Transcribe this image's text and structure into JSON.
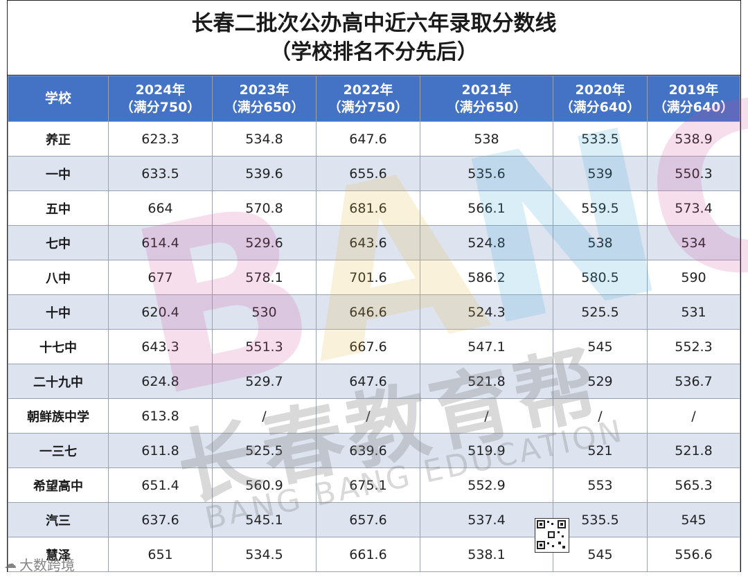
{
  "title": {
    "line1": "长春二批次公办高中近六年录取分数线",
    "line2": "（学校排名不分先后）"
  },
  "columns": [
    {
      "label": "学校",
      "sub": ""
    },
    {
      "label": "2024年",
      "sub": "（满分750）"
    },
    {
      "label": "2023年",
      "sub": "（满分650）"
    },
    {
      "label": "2022年",
      "sub": "（满分750）"
    },
    {
      "label": "2021年",
      "sub": "（满分650）"
    },
    {
      "label": "2020年",
      "sub": "（满分640）"
    },
    {
      "label": "2019年",
      "sub": "（满分640）"
    }
  ],
  "rows": [
    {
      "school": "养正",
      "values": [
        "623.3",
        "534.8",
        "647.6",
        "538",
        "533.5",
        "538.9"
      ]
    },
    {
      "school": "一中",
      "values": [
        "633.5",
        "539.6",
        "655.6",
        "535.6",
        "539",
        "550.3"
      ]
    },
    {
      "school": "五中",
      "values": [
        "664",
        "570.8",
        "681.6",
        "566.1",
        "559.5",
        "573.4"
      ]
    },
    {
      "school": "七中",
      "values": [
        "614.4",
        "529.6",
        "643.6",
        "524.8",
        "538",
        "534"
      ]
    },
    {
      "school": "八中",
      "values": [
        "677",
        "578.1",
        "701.6",
        "586.2",
        "580.5",
        "590"
      ]
    },
    {
      "school": "十中",
      "values": [
        "620.4",
        "530",
        "646.6",
        "524.3",
        "525.5",
        "531"
      ]
    },
    {
      "school": "十七中",
      "values": [
        "643.3",
        "551.3",
        "667.6",
        "547.1",
        "545",
        "552.3"
      ]
    },
    {
      "school": "二十九中",
      "values": [
        "624.8",
        "529.7",
        "647.6",
        "521.8",
        "529",
        "536.7"
      ]
    },
    {
      "school": "朝鲜族中学",
      "values": [
        "613.8",
        "/",
        "/",
        "/",
        "/",
        "/"
      ]
    },
    {
      "school": "一三七",
      "values": [
        "611.8",
        "525.5",
        "639.6",
        "519.9",
        "521",
        "521.8"
      ]
    },
    {
      "school": "希望高中",
      "values": [
        "651.4",
        "560.9",
        "675.1",
        "552.9",
        "553",
        "565.3"
      ]
    },
    {
      "school": "汽三",
      "values": [
        "637.6",
        "545.1",
        "657.6",
        "537.4",
        "535.5",
        "545"
      ]
    },
    {
      "school": "慧泽",
      "values": [
        "651",
        "534.5",
        "661.6",
        "538.1",
        "545",
        "556.6"
      ]
    }
  ],
  "watermark": {
    "letters": [
      "B",
      "A",
      "N",
      "G"
    ],
    "cn": "长春教育帮",
    "en": "BANG BANG EDUCATION"
  },
  "footer": {
    "logo_text": "大数跨境"
  },
  "colors": {
    "header_bg": "#4472c4",
    "stripe_bg": "#dde4f0"
  }
}
